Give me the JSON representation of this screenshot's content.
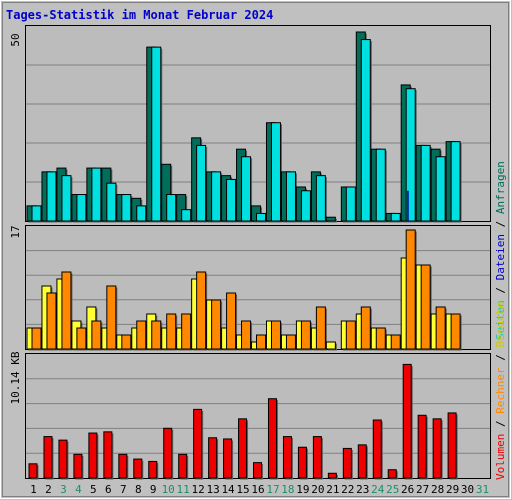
{
  "title": "Tages-Statistik im Monat Februar 2024",
  "colors": {
    "background": "#c0c0c0",
    "plot_background": "#bcbcbc",
    "grid": "#808080",
    "title": "#0000cc",
    "hits": "#006e5a",
    "files": "#0000aa",
    "pages": "#00e0e0",
    "visits": "#ffff33",
    "sites": "#ff8800",
    "kbytes": "#ee0000",
    "text": "#000000",
    "day_green": "#1a8f6c"
  },
  "legend_right": {
    "anfragen": "Anfragen",
    "dateien": "Dateien",
    "seiten": "Seiten",
    "sep": " / "
  },
  "legend_left": {
    "besuche": "Besuche",
    "rechner": "Rechner",
    "volumen": "Volumen",
    "sep": " / "
  },
  "chart_data": [
    {
      "type": "bar",
      "panel": "top",
      "ymax_label": "50",
      "ylim": [
        0,
        50
      ],
      "x": [
        1,
        2,
        3,
        4,
        5,
        6,
        7,
        8,
        9,
        10,
        11,
        12,
        13,
        14,
        15,
        16,
        17,
        18,
        19,
        20,
        21,
        22,
        23,
        24,
        25,
        26,
        27,
        28,
        29,
        30,
        31
      ],
      "series": [
        {
          "name": "Anfragen",
          "values": [
            4,
            13,
            14,
            7,
            14,
            14,
            7,
            6,
            46,
            15,
            7,
            22,
            13,
            12,
            19,
            4,
            26,
            13,
            9,
            13,
            1,
            9,
            50,
            19,
            2,
            36,
            20,
            19,
            21,
            0,
            0
          ]
        },
        {
          "name": "Dateien",
          "values": [
            4,
            13,
            12,
            7,
            14,
            10,
            7,
            4,
            46,
            7,
            3,
            20,
            13,
            11,
            17,
            2,
            26,
            13,
            8,
            12,
            0,
            9,
            48,
            19,
            2,
            8,
            20,
            17,
            21,
            0,
            0
          ]
        },
        {
          "name": "Seiten",
          "values": [
            4,
            13,
            12,
            7,
            14,
            10,
            7,
            4,
            46,
            7,
            3,
            20,
            13,
            11,
            17,
            2,
            26,
            13,
            8,
            12,
            0,
            9,
            48,
            19,
            2,
            35,
            20,
            17,
            21,
            0,
            0
          ]
        }
      ]
    },
    {
      "type": "bar",
      "panel": "middle",
      "ymax_label": "17",
      "ylim": [
        0,
        17
      ],
      "x": [
        1,
        2,
        3,
        4,
        5,
        6,
        7,
        8,
        9,
        10,
        11,
        12,
        13,
        14,
        15,
        16,
        17,
        18,
        19,
        20,
        21,
        22,
        23,
        24,
        25,
        26,
        27,
        28,
        29,
        30,
        31
      ],
      "series": [
        {
          "name": "Besuche",
          "values": [
            3,
            9,
            10,
            4,
            6,
            3,
            2,
            3,
            5,
            3,
            3,
            10,
            7,
            3,
            2,
            1,
            4,
            2,
            4,
            3,
            1,
            4,
            5,
            3,
            2,
            13,
            12,
            5,
            5,
            0,
            0
          ]
        },
        {
          "name": "Rechner",
          "values": [
            3,
            8,
            11,
            3,
            4,
            9,
            2,
            4,
            4,
            5,
            5,
            11,
            7,
            8,
            4,
            2,
            4,
            2,
            4,
            6,
            0,
            4,
            6,
            3,
            2,
            17,
            12,
            6,
            5,
            0,
            0
          ]
        }
      ]
    },
    {
      "type": "bar",
      "panel": "bottom",
      "ymax_label": "10.14 KB",
      "ylim": [
        0,
        10.14
      ],
      "x": [
        1,
        2,
        3,
        4,
        5,
        6,
        7,
        8,
        9,
        10,
        11,
        12,
        13,
        14,
        15,
        16,
        17,
        18,
        19,
        20,
        21,
        22,
        23,
        24,
        25,
        26,
        27,
        28,
        29,
        30,
        31
      ],
      "series": [
        {
          "name": "Volumen",
          "values": [
            1.2,
            3.5,
            3.2,
            2.0,
            3.8,
            3.9,
            2.0,
            1.6,
            1.4,
            4.2,
            2.0,
            5.8,
            3.4,
            3.3,
            5.0,
            1.3,
            6.7,
            3.5,
            2.6,
            3.5,
            0.4,
            2.5,
            2.8,
            4.9,
            0.7,
            9.6,
            5.3,
            5.0,
            5.5,
            0,
            0
          ]
        }
      ]
    }
  ],
  "day_labels": [
    "1",
    "2",
    "3",
    "4",
    "5",
    "6",
    "7",
    "8",
    "9",
    "10",
    "11",
    "12",
    "13",
    "14",
    "15",
    "16",
    "17",
    "18",
    "19",
    "20",
    "21",
    "22",
    "23",
    "24",
    "25",
    "26",
    "27",
    "28",
    "29",
    "30",
    "31"
  ],
  "weekend_days": [
    3,
    4,
    10,
    11,
    17,
    18,
    24,
    25,
    31
  ]
}
